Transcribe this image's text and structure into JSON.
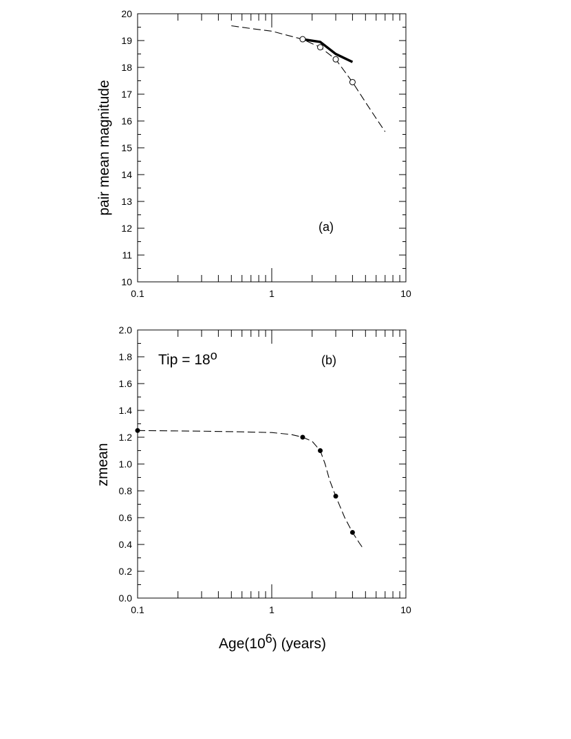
{
  "chart_data": [
    {
      "type": "line",
      "panel_label": "(a)",
      "ylabel": "pair mean magnitude",
      "xscale": "log",
      "xlim": [
        0.1,
        10
      ],
      "ylim": [
        10,
        20
      ],
      "x_tick_labels": [
        "0.1",
        "1",
        "10"
      ],
      "y_tick_labels": [
        "10",
        "11",
        "12",
        "13",
        "14",
        "15",
        "16",
        "17",
        "18",
        "19",
        "20"
      ],
      "grid": false,
      "series": [
        {
          "style": "dashed",
          "x": [
            0.5,
            0.7,
            1.0,
            1.3,
            1.7,
            2.3,
            3.0,
            4.0,
            5.0,
            6.0,
            7.0
          ],
          "y": [
            19.55,
            19.45,
            19.35,
            19.2,
            19.05,
            18.75,
            18.3,
            17.45,
            16.7,
            16.1,
            15.6
          ]
        },
        {
          "style": "solid-thick",
          "x": [
            1.7,
            2.3,
            3.0,
            4.0
          ],
          "y": [
            19.05,
            18.95,
            18.5,
            18.2
          ]
        },
        {
          "style": "open-circles",
          "x": [
            1.7,
            2.3,
            3.0,
            4.0
          ],
          "y": [
            19.05,
            18.75,
            18.3,
            17.45
          ]
        }
      ]
    },
    {
      "type": "line",
      "panel_label": "(b)",
      "ylabel": "zmean",
      "xlabel": "Age(10⁶) (years)",
      "annotation": "Tip = 18°",
      "xscale": "log",
      "xlim": [
        0.1,
        10
      ],
      "ylim": [
        0.0,
        2.0
      ],
      "x_tick_labels": [
        "0.1",
        "1",
        "10"
      ],
      "y_tick_labels": [
        "0.0",
        "0.2",
        "0.4",
        "0.6",
        "0.8",
        "1.0",
        "1.2",
        "1.4",
        "1.6",
        "1.8",
        "2.0"
      ],
      "grid": false,
      "series": [
        {
          "style": "dashed",
          "x": [
            0.1,
            0.3,
            0.6,
            1.0,
            1.4,
            1.7,
            2.0,
            2.3,
            2.5,
            2.7,
            3.0,
            3.5,
            4.0,
            4.5,
            4.8
          ],
          "y": [
            1.25,
            1.245,
            1.24,
            1.235,
            1.22,
            1.2,
            1.17,
            1.1,
            1.0,
            0.88,
            0.76,
            0.6,
            0.49,
            0.41,
            0.37
          ]
        },
        {
          "style": "filled-dots",
          "x": [
            0.1,
            1.7,
            2.3,
            3.0,
            4.0
          ],
          "y": [
            1.25,
            1.2,
            1.1,
            0.76,
            0.49
          ]
        }
      ]
    }
  ],
  "labels": {
    "a_panel": "(a)",
    "a_ylabel": "pair mean magnitude",
    "b_panel": "(b)",
    "b_ylabel_main": "z",
    "b_ylabel_sub": "mean",
    "b_annotation_main": "Tip = 18",
    "b_annotation_sup": "o",
    "xlabel_main": "Age(10",
    "xlabel_sup": "6",
    "xlabel_rest": ") (years)"
  }
}
